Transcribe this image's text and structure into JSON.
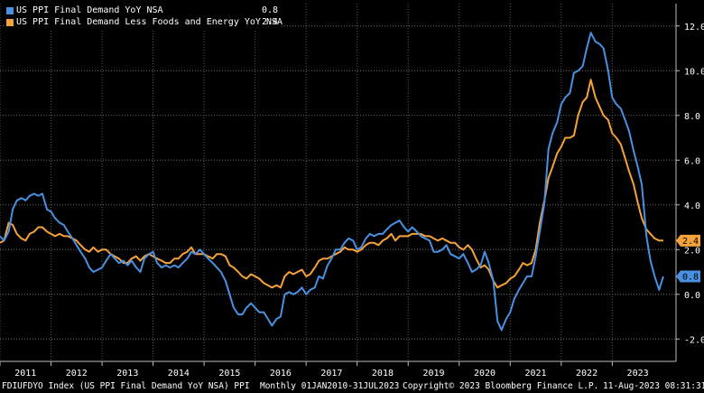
{
  "chart_data": {
    "type": "line",
    "xlim": [
      2010.5,
      2023.75
    ],
    "ylim": [
      -3,
      13
    ],
    "y_ticks": [
      -2,
      0,
      2,
      4,
      6,
      8,
      10,
      12
    ],
    "y_tick_labels": [
      "-2.0",
      "0.0",
      "2.0",
      "4.0",
      "6.0",
      "8.0",
      "10.0",
      "12.0"
    ],
    "x_ticks": [
      2011,
      2012,
      2013,
      2014,
      2015,
      2016,
      2017,
      2018,
      2019,
      2020,
      2021,
      2022,
      2023
    ],
    "x_tick_labels": [
      "2011",
      "2012",
      "2013",
      "2014",
      "2015",
      "2016",
      "2017",
      "2018",
      "2019",
      "2020",
      "2021",
      "2022",
      "2023"
    ],
    "grid": true,
    "legend_position": "top-left",
    "series": [
      {
        "name": "US PPI Final Demand YoY NSA",
        "last_value": "0.8",
        "color": "#4a90e2",
        "x": [
          2010.5,
          2010.58,
          2010.67,
          2010.75,
          2010.83,
          2010.92,
          2011.0,
          2011.08,
          2011.17,
          2011.25,
          2011.33,
          2011.42,
          2011.5,
          2011.58,
          2011.67,
          2011.75,
          2011.83,
          2011.92,
          2012.0,
          2012.08,
          2012.17,
          2012.25,
          2012.33,
          2012.42,
          2012.5,
          2012.58,
          2012.67,
          2012.75,
          2012.83,
          2012.92,
          2013.0,
          2013.08,
          2013.17,
          2013.25,
          2013.33,
          2013.42,
          2013.5,
          2013.58,
          2013.67,
          2013.75,
          2013.83,
          2013.92,
          2014.0,
          2014.08,
          2014.17,
          2014.25,
          2014.33,
          2014.42,
          2014.5,
          2014.58,
          2014.67,
          2014.75,
          2014.83,
          2014.92,
          2015.0,
          2015.08,
          2015.17,
          2015.25,
          2015.33,
          2015.42,
          2015.5,
          2015.58,
          2015.67,
          2015.75,
          2015.83,
          2015.92,
          2016.0,
          2016.08,
          2016.17,
          2016.25,
          2016.33,
          2016.42,
          2016.5,
          2016.58,
          2016.67,
          2016.75,
          2016.83,
          2016.92,
          2017.0,
          2017.08,
          2017.17,
          2017.25,
          2017.33,
          2017.42,
          2017.5,
          2017.58,
          2017.67,
          2017.75,
          2017.83,
          2017.92,
          2018.0,
          2018.08,
          2018.17,
          2018.25,
          2018.33,
          2018.42,
          2018.5,
          2018.58,
          2018.67,
          2018.75,
          2018.83,
          2018.92,
          2019.0,
          2019.08,
          2019.17,
          2019.25,
          2019.33,
          2019.42,
          2019.5,
          2019.58,
          2019.67,
          2019.75,
          2019.83,
          2019.92,
          2020.0,
          2020.08,
          2020.17,
          2020.25,
          2020.33,
          2020.42,
          2020.5,
          2020.58,
          2020.67,
          2020.75,
          2020.83,
          2020.92,
          2021.0,
          2021.08,
          2021.17,
          2021.25,
          2021.33,
          2021.42,
          2021.5,
          2021.58,
          2021.67,
          2021.75,
          2021.83,
          2021.92,
          2022.0,
          2022.08,
          2022.17,
          2022.25,
          2022.33,
          2022.42,
          2022.5,
          2022.58,
          2022.67,
          2022.75,
          2022.83,
          2022.92,
          2023.0,
          2023.08,
          2023.17,
          2023.25,
          2023.33,
          2023.42,
          2023.5
        ],
        "y": [
          2.6,
          2.4,
          2.8,
          3.8,
          4.2,
          4.3,
          4.2,
          4.4,
          4.5,
          4.4,
          4.5,
          3.8,
          3.7,
          3.4,
          3.2,
          3.1,
          2.8,
          2.5,
          2.2,
          1.9,
          1.6,
          1.2,
          1.0,
          1.1,
          1.2,
          1.5,
          1.8,
          1.6,
          1.4,
          1.5,
          1.3,
          1.5,
          1.2,
          1.0,
          1.6,
          1.8,
          1.9,
          1.4,
          1.2,
          1.3,
          1.2,
          1.3,
          1.2,
          1.4,
          1.6,
          1.9,
          1.8,
          2.0,
          1.8,
          1.6,
          1.4,
          1.2,
          1.0,
          0.6,
          0.0,
          -0.6,
          -0.9,
          -0.9,
          -0.6,
          -0.4,
          -0.6,
          -0.8,
          -0.8,
          -1.1,
          -1.4,
          -1.1,
          -1.0,
          0.0,
          0.1,
          0.0,
          0.1,
          0.3,
          0.0,
          0.2,
          0.3,
          0.8,
          0.7,
          1.3,
          1.6,
          2.0,
          2.0,
          2.3,
          2.5,
          2.4,
          2.0,
          2.1,
          2.5,
          2.7,
          2.6,
          2.7,
          2.7,
          2.9,
          3.1,
          3.2,
          3.3,
          3.0,
          2.8,
          3.0,
          2.8,
          2.6,
          2.5,
          2.4,
          1.9,
          1.9,
          2.0,
          2.2,
          1.8,
          1.7,
          1.6,
          1.8,
          1.4,
          1.0,
          1.1,
          1.3,
          1.9,
          1.4,
          0.6,
          -1.2,
          -1.6,
          -1.1,
          -0.8,
          -0.2,
          0.2,
          0.5,
          0.8,
          0.8,
          1.7,
          2.8,
          4.1,
          6.5,
          7.2,
          7.7,
          8.5,
          8.8,
          9.0,
          9.9,
          10.0,
          10.2,
          11.0,
          11.7,
          11.3,
          11.2,
          11.0,
          10.0,
          8.8,
          8.5,
          8.3,
          7.8,
          7.3,
          6.4,
          5.7,
          4.9,
          2.6,
          1.5,
          0.8,
          0.2,
          0.8
        ]
      },
      {
        "name": "US PPI Final Demand Less Foods and Energy YoY NSA",
        "last_value": "2.4",
        "color": "#f5a23a",
        "x": [
          2010.5,
          2010.58,
          2010.67,
          2010.75,
          2010.83,
          2010.92,
          2011.0,
          2011.08,
          2011.17,
          2011.25,
          2011.33,
          2011.42,
          2011.5,
          2011.58,
          2011.67,
          2011.75,
          2011.83,
          2011.92,
          2012.0,
          2012.08,
          2012.17,
          2012.25,
          2012.33,
          2012.42,
          2012.5,
          2012.58,
          2012.67,
          2012.75,
          2012.83,
          2012.92,
          2013.0,
          2013.08,
          2013.17,
          2013.25,
          2013.33,
          2013.42,
          2013.5,
          2013.58,
          2013.67,
          2013.75,
          2013.83,
          2013.92,
          2014.0,
          2014.08,
          2014.17,
          2014.25,
          2014.33,
          2014.42,
          2014.5,
          2014.58,
          2014.67,
          2014.75,
          2014.83,
          2014.92,
          2015.0,
          2015.08,
          2015.17,
          2015.25,
          2015.33,
          2015.42,
          2015.5,
          2015.58,
          2015.67,
          2015.75,
          2015.83,
          2015.92,
          2016.0,
          2016.08,
          2016.17,
          2016.25,
          2016.33,
          2016.42,
          2016.5,
          2016.58,
          2016.67,
          2016.75,
          2016.83,
          2016.92,
          2017.0,
          2017.08,
          2017.17,
          2017.25,
          2017.33,
          2017.42,
          2017.5,
          2017.58,
          2017.67,
          2017.75,
          2017.83,
          2017.92,
          2018.0,
          2018.08,
          2018.17,
          2018.25,
          2018.33,
          2018.42,
          2018.5,
          2018.58,
          2018.67,
          2018.75,
          2018.83,
          2018.92,
          2019.0,
          2019.08,
          2019.17,
          2019.25,
          2019.33,
          2019.42,
          2019.5,
          2019.58,
          2019.67,
          2019.75,
          2019.83,
          2019.92,
          2020.0,
          2020.08,
          2020.17,
          2020.25,
          2020.33,
          2020.42,
          2020.5,
          2020.58,
          2020.67,
          2020.75,
          2020.83,
          2020.92,
          2021.0,
          2021.08,
          2021.17,
          2021.25,
          2021.33,
          2021.42,
          2021.5,
          2021.58,
          2021.67,
          2021.75,
          2021.83,
          2021.92,
          2022.0,
          2022.08,
          2022.17,
          2022.25,
          2022.33,
          2022.42,
          2022.5,
          2022.58,
          2022.67,
          2022.75,
          2022.83,
          2022.92,
          2023.0,
          2023.08,
          2023.17,
          2023.25,
          2023.33,
          2023.42,
          2023.5
        ],
        "y": [
          2.3,
          2.4,
          3.2,
          3.1,
          2.7,
          2.5,
          2.4,
          2.7,
          2.8,
          3.0,
          3.0,
          2.8,
          2.7,
          2.6,
          2.7,
          2.6,
          2.6,
          2.5,
          2.4,
          2.2,
          2.0,
          1.9,
          2.1,
          1.9,
          2.0,
          2.0,
          1.8,
          1.7,
          1.6,
          1.4,
          1.4,
          1.6,
          1.7,
          1.5,
          1.7,
          1.8,
          1.7,
          1.6,
          1.5,
          1.4,
          1.4,
          1.6,
          1.6,
          1.8,
          1.9,
          2.1,
          1.8,
          1.8,
          1.8,
          1.7,
          1.6,
          1.8,
          1.8,
          1.7,
          1.3,
          1.2,
          1.0,
          0.8,
          0.7,
          0.9,
          0.8,
          0.7,
          0.5,
          0.4,
          0.3,
          0.4,
          0.3,
          0.8,
          1.0,
          0.9,
          1.0,
          1.1,
          0.8,
          0.9,
          1.2,
          1.5,
          1.6,
          1.6,
          1.7,
          1.8,
          1.9,
          2.1,
          2.0,
          2.0,
          1.9,
          2.0,
          2.2,
          2.3,
          2.3,
          2.2,
          2.4,
          2.5,
          2.7,
          2.4,
          2.6,
          2.6,
          2.6,
          2.7,
          2.7,
          2.7,
          2.6,
          2.6,
          2.5,
          2.4,
          2.5,
          2.4,
          2.3,
          2.3,
          2.1,
          2.0,
          2.2,
          2.0,
          1.6,
          1.2,
          1.3,
          1.1,
          0.6,
          0.3,
          0.4,
          0.5,
          0.7,
          0.8,
          1.1,
          1.4,
          1.3,
          1.4,
          2.0,
          3.2,
          4.2,
          5.2,
          5.7,
          6.3,
          6.6,
          7.0,
          7.0,
          7.1,
          8.0,
          8.6,
          8.8,
          9.6,
          8.8,
          8.4,
          8.0,
          7.8,
          7.2,
          7.0,
          6.7,
          6.1,
          5.5,
          4.9,
          4.1,
          3.4,
          2.9,
          2.7,
          2.5,
          2.4,
          2.4
        ]
      }
    ]
  },
  "footer": {
    "left": "FDIUFDYO Index (US PPI Final Demand YoY NSA) PPI  Monthly 01JAN2010-31JUL2023",
    "center": "Copyright© 2023 Bloomberg Finance L.P.",
    "right": "11-Aug-2023 08:31:31"
  }
}
